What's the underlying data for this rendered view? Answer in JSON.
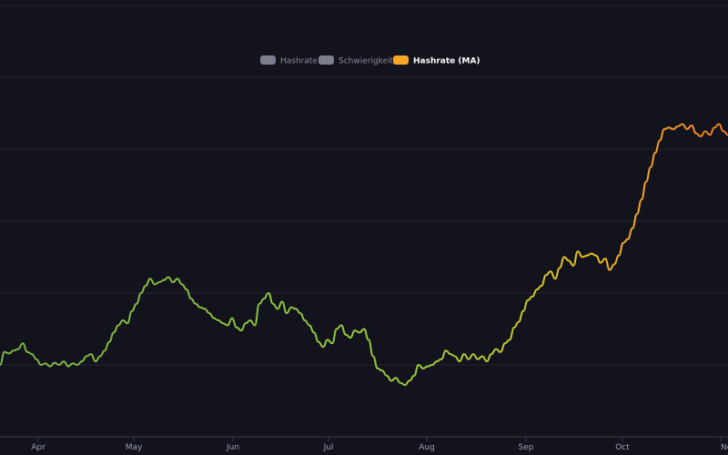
{
  "chart_data": {
    "type": "line",
    "title": "",
    "xlabel": "",
    "ylabel": "",
    "grid": true,
    "legend_position": "top-center",
    "x_ticks": [
      "Apr",
      "May",
      "Jun",
      "Jul",
      "Aug",
      "Sep",
      "Oct",
      "Nov"
    ],
    "legend": [
      {
        "label": "Hashrate",
        "active": false,
        "color": "#7b7e8c"
      },
      {
        "label": "Schwierigkeit",
        "active": false,
        "color": "#7b7e8c"
      },
      {
        "label": "Hashrate (MA)",
        "active": true,
        "color": "#f5a623"
      }
    ],
    "series": [
      {
        "name": "Hashrate (MA)",
        "gradient_colors": [
          "#7cb342",
          "#9ccc3c",
          "#e8c21f",
          "#f5a623",
          "#f07a1e"
        ],
        "y_range": [
          0,
          6
        ],
        "points": [
          [
            0,
            1.0
          ],
          [
            5,
            1.18
          ],
          [
            10,
            1.16
          ],
          [
            15,
            1.2
          ],
          [
            20,
            1.22
          ],
          [
            25,
            1.3
          ],
          [
            30,
            1.18
          ],
          [
            35,
            1.15
          ],
          [
            40,
            1.08
          ],
          [
            45,
            1.0
          ],
          [
            50,
            1.02
          ],
          [
            55,
            0.98
          ],
          [
            60,
            1.03
          ],
          [
            65,
            1.0
          ],
          [
            70,
            1.05
          ],
          [
            75,
            0.98
          ],
          [
            80,
            1.02
          ],
          [
            85,
            1.0
          ],
          [
            90,
            1.05
          ],
          [
            95,
            1.12
          ],
          [
            100,
            1.15
          ],
          [
            105,
            1.05
          ],
          [
            110,
            1.12
          ],
          [
            115,
            1.2
          ],
          [
            120,
            1.32
          ],
          [
            125,
            1.45
          ],
          [
            130,
            1.55
          ],
          [
            135,
            1.62
          ],
          [
            140,
            1.58
          ],
          [
            145,
            1.75
          ],
          [
            150,
            1.85
          ],
          [
            155,
            2.0
          ],
          [
            160,
            2.1
          ],
          [
            165,
            2.2
          ],
          [
            170,
            2.12
          ],
          [
            175,
            2.15
          ],
          [
            180,
            2.18
          ],
          [
            185,
            2.22
          ],
          [
            190,
            2.15
          ],
          [
            195,
            2.2
          ],
          [
            200,
            2.12
          ],
          [
            205,
            2.05
          ],
          [
            210,
            1.92
          ],
          [
            215,
            1.85
          ],
          [
            220,
            1.8
          ],
          [
            225,
            1.78
          ],
          [
            230,
            1.72
          ],
          [
            235,
            1.65
          ],
          [
            240,
            1.62
          ],
          [
            245,
            1.58
          ],
          [
            250,
            1.55
          ],
          [
            255,
            1.65
          ],
          [
            260,
            1.52
          ],
          [
            265,
            1.48
          ],
          [
            270,
            1.58
          ],
          [
            275,
            1.62
          ],
          [
            280,
            1.55
          ],
          [
            285,
            1.85
          ],
          [
            290,
            1.92
          ],
          [
            295,
            2.0
          ],
          [
            300,
            1.85
          ],
          [
            305,
            1.78
          ],
          [
            310,
            1.88
          ],
          [
            315,
            1.72
          ],
          [
            320,
            1.8
          ],
          [
            325,
            1.78
          ],
          [
            330,
            1.72
          ],
          [
            335,
            1.62
          ],
          [
            340,
            1.55
          ],
          [
            345,
            1.45
          ],
          [
            350,
            1.32
          ],
          [
            355,
            1.25
          ],
          [
            360,
            1.35
          ],
          [
            365,
            1.3
          ],
          [
            370,
            1.5
          ],
          [
            375,
            1.55
          ],
          [
            380,
            1.42
          ],
          [
            385,
            1.38
          ],
          [
            390,
            1.48
          ],
          [
            395,
            1.45
          ],
          [
            400,
            1.5
          ],
          [
            405,
            1.35
          ],
          [
            410,
            1.12
          ],
          [
            415,
            0.95
          ],
          [
            420,
            0.92
          ],
          [
            425,
            0.85
          ],
          [
            430,
            0.78
          ],
          [
            435,
            0.82
          ],
          [
            440,
            0.75
          ],
          [
            445,
            0.72
          ],
          [
            450,
            0.78
          ],
          [
            455,
            0.85
          ],
          [
            460,
            1.0
          ],
          [
            465,
            0.95
          ],
          [
            470,
            0.98
          ],
          [
            475,
            1.0
          ],
          [
            480,
            1.05
          ],
          [
            485,
            1.08
          ],
          [
            490,
            1.2
          ],
          [
            495,
            1.15
          ],
          [
            500,
            1.12
          ],
          [
            505,
            1.05
          ],
          [
            510,
            1.15
          ],
          [
            515,
            1.08
          ],
          [
            520,
            1.15
          ],
          [
            525,
            1.08
          ],
          [
            530,
            1.12
          ],
          [
            535,
            1.05
          ],
          [
            540,
            1.15
          ],
          [
            545,
            1.22
          ],
          [
            550,
            1.18
          ],
          [
            555,
            1.3
          ],
          [
            560,
            1.35
          ],
          [
            565,
            1.52
          ],
          [
            570,
            1.6
          ],
          [
            575,
            1.75
          ],
          [
            580,
            1.9
          ],
          [
            585,
            1.95
          ],
          [
            590,
            2.05
          ],
          [
            595,
            2.1
          ],
          [
            600,
            2.25
          ],
          [
            605,
            2.3
          ],
          [
            610,
            2.2
          ],
          [
            615,
            2.35
          ],
          [
            620,
            2.5
          ],
          [
            625,
            2.45
          ],
          [
            630,
            2.38
          ],
          [
            635,
            2.58
          ],
          [
            640,
            2.5
          ],
          [
            645,
            2.52
          ],
          [
            650,
            2.55
          ],
          [
            655,
            2.52
          ],
          [
            660,
            2.42
          ],
          [
            665,
            2.48
          ],
          [
            670,
            2.32
          ],
          [
            675,
            2.4
          ],
          [
            680,
            2.52
          ],
          [
            685,
            2.7
          ],
          [
            690,
            2.75
          ],
          [
            695,
            2.9
          ],
          [
            700,
            3.1
          ],
          [
            705,
            3.3
          ],
          [
            710,
            3.55
          ],
          [
            715,
            3.75
          ],
          [
            720,
            3.95
          ],
          [
            725,
            4.12
          ],
          [
            730,
            4.28
          ],
          [
            735,
            4.3
          ],
          [
            740,
            4.28
          ],
          [
            745,
            4.32
          ],
          [
            750,
            4.35
          ],
          [
            755,
            4.28
          ],
          [
            760,
            4.33
          ],
          [
            765,
            4.22
          ],
          [
            770,
            4.18
          ],
          [
            775,
            4.25
          ],
          [
            780,
            4.2
          ],
          [
            785,
            4.3
          ],
          [
            790,
            4.35
          ],
          [
            795,
            4.25
          ],
          [
            800,
            4.2
          ]
        ]
      }
    ]
  }
}
